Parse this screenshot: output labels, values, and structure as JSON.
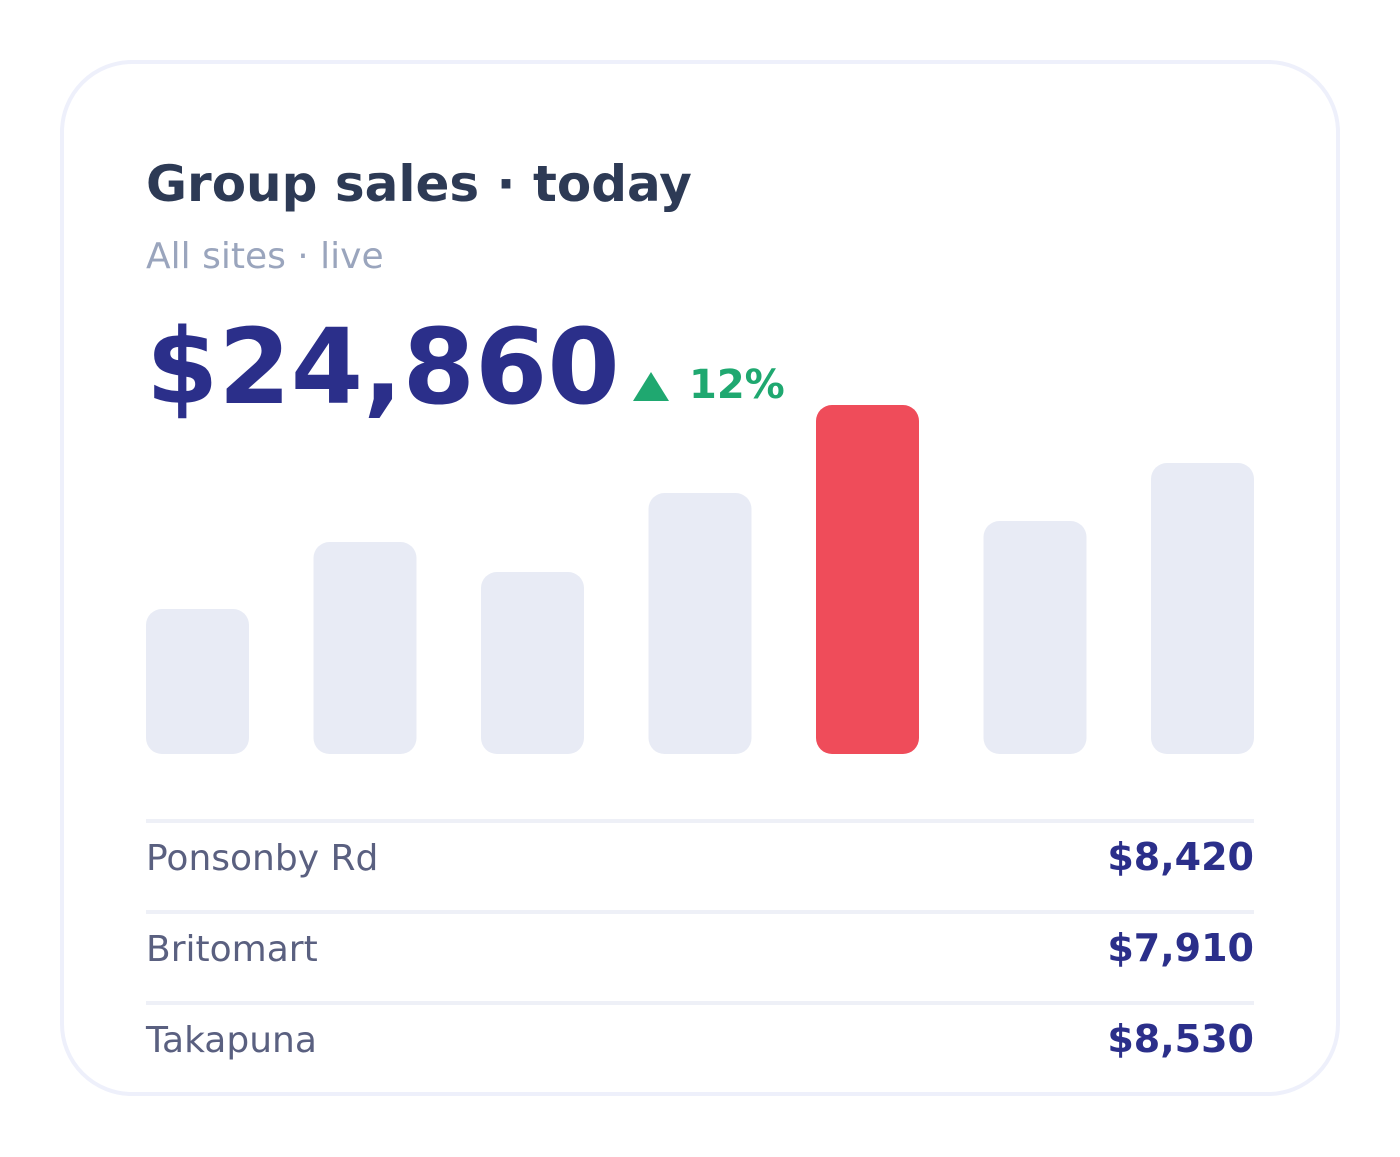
{
  "header": {
    "title": "Group sales · today",
    "subtitle": "All sites · live"
  },
  "total": {
    "value": "$24,860",
    "change": "12%"
  },
  "chart_data": {
    "type": "bar",
    "values": [
      145,
      212,
      182,
      261,
      349,
      233,
      291
    ],
    "color": "#e8ebf5",
    "highlight_color": "#ef4c5a",
    "highlight_index": 4
  },
  "sites": [
    {
      "name": "Ponsonby Rd",
      "value": "$8,420"
    },
    {
      "name": "Britomart",
      "value": "$7,910"
    },
    {
      "name": "Takapuna",
      "value": "$8,530"
    }
  ]
}
